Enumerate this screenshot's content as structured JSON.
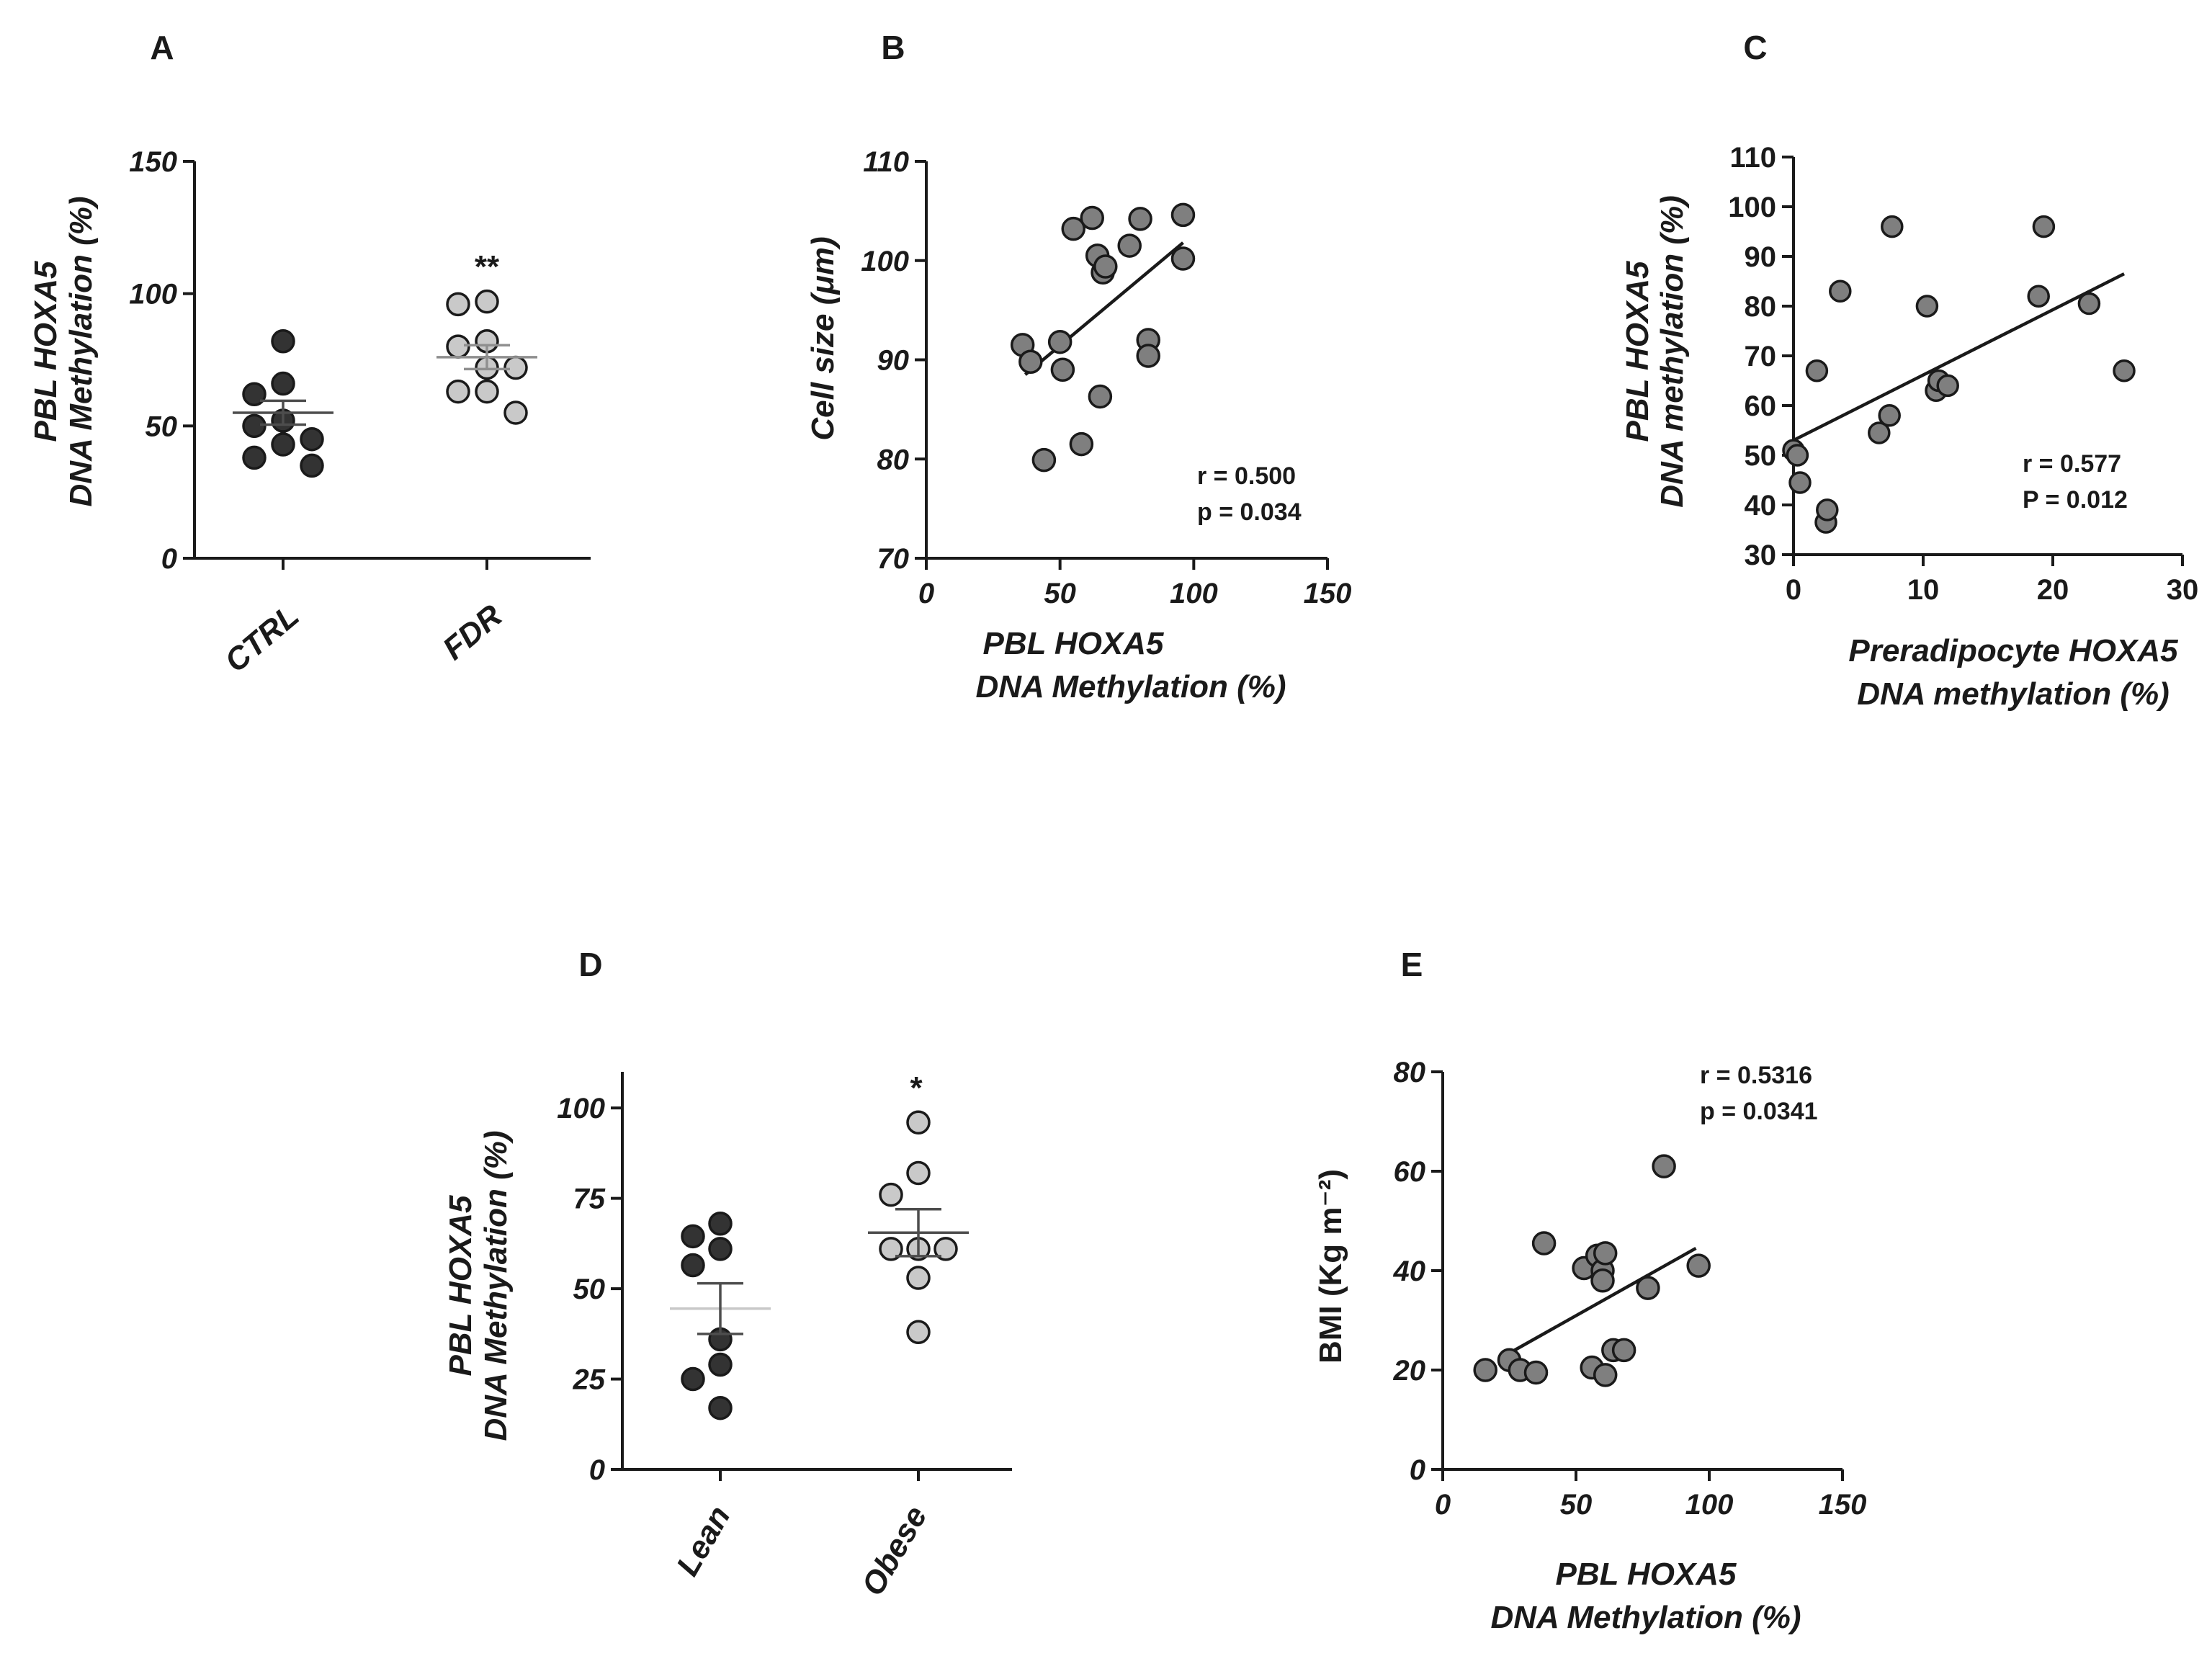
{
  "colors": {
    "dark_point": "#333333",
    "light_point": "#c9c9c9",
    "gray_point": "#7f7f7f",
    "point_stroke": "#1a1a1a",
    "axis": "#1a1a1a",
    "mean_dark": "#4d4d4d",
    "mean_light": "#8f8f8f",
    "mean_pale": "#c8c8c8"
  },
  "chart_data": [
    {
      "panel": "A",
      "type": "scatter",
      "subtype": "dot-plot",
      "xlabel": "",
      "ylabel": [
        "PBL HOXA5",
        "DNA Methylation (%)"
      ],
      "ylim": [
        0,
        150
      ],
      "yticks": [
        0,
        50,
        100,
        150
      ],
      "categories": [
        "CTRL",
        "FDR"
      ],
      "series": [
        {
          "name": "CTRL",
          "values": [
            82,
            66,
            62,
            52,
            50,
            45,
            43,
            38,
            35
          ],
          "mean": 55,
          "sem": 4.5,
          "marker": "dark"
        },
        {
          "name": "FDR",
          "values": [
            97,
            96,
            82,
            80,
            72,
            72,
            63,
            63,
            55
          ],
          "mean": 76,
          "sem": 4.5,
          "marker": "light"
        }
      ],
      "significance": [
        {
          "category": "FDR",
          "label": "**"
        }
      ]
    },
    {
      "panel": "B",
      "type": "scatter",
      "xlabel": [
        "PBL HOXA5",
        "DNA Methylation (%)"
      ],
      "ylabel": "Cell size (μm)",
      "xlim": [
        0,
        150
      ],
      "ylim": [
        70,
        110
      ],
      "xticks": [
        0,
        50,
        100,
        150
      ],
      "yticks": [
        70,
        80,
        90,
        100,
        110
      ],
      "x": [
        36,
        39,
        50,
        51,
        44,
        55,
        58,
        62,
        64,
        66,
        67,
        65,
        76,
        80,
        83,
        83,
        96,
        96
      ],
      "y": [
        91.5,
        89.8,
        91.8,
        89,
        79.9,
        103.2,
        81.5,
        104.3,
        100.5,
        98.8,
        99.4,
        86.3,
        101.5,
        104.2,
        92,
        90.4,
        104.6,
        100.2
      ],
      "fit": {
        "x": [
          37,
          96
        ],
        "y": [
          88.5,
          101.8
        ]
      },
      "stats": {
        "r": "r = 0.500",
        "p": "p =  0.034"
      }
    },
    {
      "panel": "C",
      "type": "scatter",
      "xlabel": [
        "Preradipocyte HOXA5",
        "DNA methylation (%)"
      ],
      "ylabel": [
        "PBL HOXA5",
        "DNA methylation (%)"
      ],
      "xlim": [
        0,
        30
      ],
      "ylim": [
        30,
        110
      ],
      "xticks": [
        0,
        10,
        20,
        30
      ],
      "yticks": [
        30,
        40,
        50,
        60,
        70,
        80,
        90,
        100,
        110
      ],
      "x": [
        0,
        0.3,
        0.5,
        1.8,
        2.5,
        2.6,
        3.6,
        6.6,
        7.4,
        7.6,
        10.3,
        11,
        11.2,
        11.9,
        18.9,
        19.3,
        22.8,
        25.5
      ],
      "y": [
        51,
        50,
        44.5,
        67,
        36.5,
        39,
        83,
        54.5,
        58,
        96,
        80,
        63,
        65,
        64,
        82,
        96,
        80.5,
        67
      ],
      "fit": {
        "x": [
          0,
          25.5
        ],
        "y": [
          53,
          86.5
        ]
      },
      "stats": {
        "r": "r = 0.577",
        "p": "P = 0.012"
      }
    },
    {
      "panel": "D",
      "type": "scatter",
      "subtype": "dot-plot",
      "xlabel": "",
      "ylabel": [
        "PBL HOXA5",
        "DNA Methylation (%)"
      ],
      "ylim": [
        0,
        110
      ],
      "yticks": [
        0,
        25,
        50,
        75,
        100
      ],
      "categories": [
        "Lean",
        "Obese"
      ],
      "series": [
        {
          "name": "Lean",
          "values": [
            68,
            64.5,
            61,
            56.5,
            36,
            29,
            25,
            17
          ],
          "mean": 44.5,
          "sem": 7,
          "marker": "dark"
        },
        {
          "name": "Obese",
          "values": [
            96,
            82,
            76,
            61,
            61,
            61,
            53,
            38
          ],
          "mean": 65.5,
          "sem": 6.5,
          "marker": "light"
        }
      ],
      "significance": [
        {
          "category": "Obese",
          "label": "*"
        }
      ]
    },
    {
      "panel": "E",
      "type": "scatter",
      "xlabel": [
        "PBL HOXA5",
        "DNA Methylation (%)"
      ],
      "ylabel": "BMI (Kg m⁻²)",
      "xlim": [
        0,
        150
      ],
      "ylim": [
        0,
        80
      ],
      "xticks": [
        0,
        50,
        100,
        150
      ],
      "yticks": [
        0,
        20,
        40,
        60,
        80
      ],
      "x": [
        16,
        25,
        29,
        35,
        38,
        53,
        56,
        58,
        60,
        60,
        61,
        61,
        64,
        68,
        77,
        83,
        96
      ],
      "y": [
        20,
        22,
        20,
        19.5,
        45.5,
        40.5,
        20.5,
        43,
        40,
        38,
        19,
        43.5,
        24,
        24,
        36.5,
        61,
        41
      ],
      "fit": {
        "x": [
          22,
          95
        ],
        "y": [
          22.5,
          44.5
        ]
      },
      "stats": {
        "r": "r = 0.5316",
        "p": "p =  0.0341"
      }
    }
  ]
}
